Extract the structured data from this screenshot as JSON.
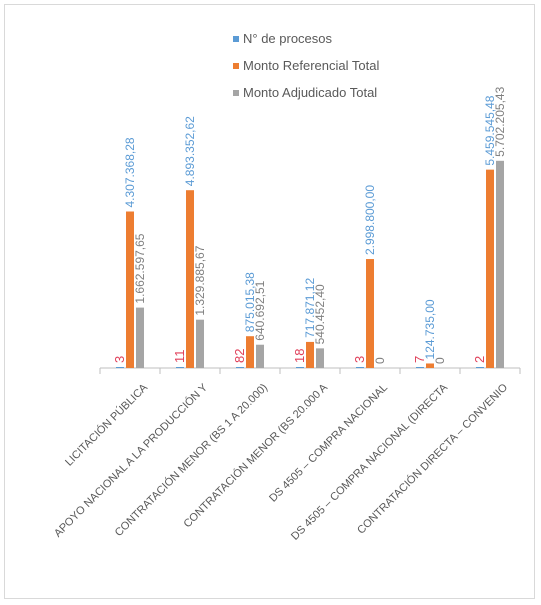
{
  "chart_data": {
    "type": "bar",
    "title": "",
    "xlabel": "",
    "ylabel": "",
    "categories": [
      "LICITACIÓN PÚBLICA",
      "APOYO NACIONAL A LA PRODUCCIÓN Y",
      "CONTRATACIÓN MENOR (BS 1 A 20.000)",
      "CONTRATACIÓN MENOR (BS 20.000 A",
      "DS 4505 – COMPRA NACIONAL",
      "DS 4505 – COMPRA NACIONAL (DIRECTA",
      "CONTRATACIÓN DIRECTA – CONVENIO"
    ],
    "series": [
      {
        "name": "N° de procesos",
        "color": "#5b9bd5",
        "labelColor": "#e0405a",
        "values": [
          3,
          11,
          82,
          18,
          3,
          7,
          2
        ],
        "labels": [
          "3",
          "11",
          "82",
          "18",
          "3",
          "7",
          "2"
        ]
      },
      {
        "name": "Monto Referencial Total",
        "color": "#ed7d31",
        "labelColor": "#5b9bd5",
        "values": [
          4307368.28,
          4893352.62,
          875015.38,
          717871.12,
          2998800.0,
          124735.0,
          5459545.48
        ],
        "labels": [
          "4.307.368,28",
          "4.893.352,62",
          "875.015,38",
          "717.871,12",
          "2.998.800,00",
          "124.735,00",
          "5.459.545,48"
        ]
      },
      {
        "name": "Monto Adjudicado Total",
        "color": "#a5a5a5",
        "labelColor": "#7f7f7f",
        "values": [
          1662597.65,
          1329885.67,
          640692.51,
          540452.4,
          0,
          0,
          5702205.43
        ],
        "labels": [
          "1.662.597,65",
          "1.329.885,67",
          "640.692,51",
          "540.452,40",
          "0",
          "0",
          "5.702.205,43"
        ]
      }
    ],
    "ylim": [
      0,
      6000000
    ],
    "grid": false,
    "legend": "top"
  }
}
